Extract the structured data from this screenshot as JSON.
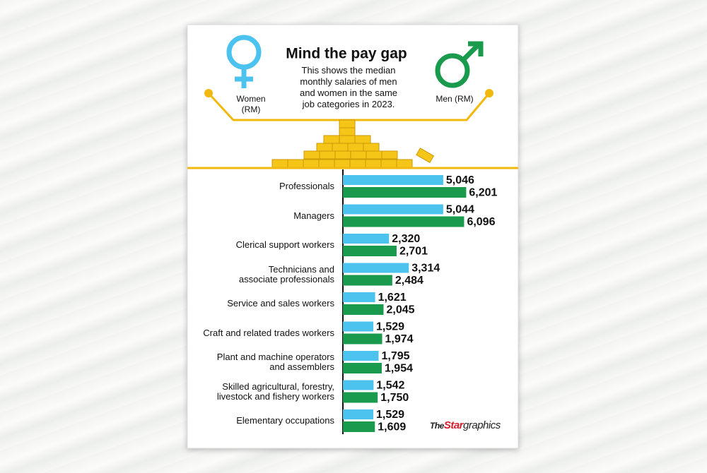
{
  "chart_data": {
    "type": "bar",
    "orientation": "horizontal",
    "title": "Mind the pay gap",
    "subtitle": "This shows the median monthly salaries of men and women in the same job categories in 2023.",
    "categories": [
      "Professionals",
      "Managers",
      "Clerical support workers",
      "Technicians and\nassociate professionals",
      "Service  and sales workers",
      "Craft and related trades workers",
      "Plant  and machine operators\nand assemblers",
      "Skilled agricultural, forestry,\nlivestock and fishery workers",
      "Elementary  occupations"
    ],
    "series": [
      {
        "name": "Women (RM)",
        "color": "#4cc3ee",
        "values": [
          5046,
          5044,
          2320,
          3314,
          1621,
          1529,
          1795,
          1542,
          1529
        ],
        "value_labels": [
          "5,046",
          "5,044",
          "2,320",
          "3,314",
          "1,621",
          "1,529",
          "1,795",
          "1,542",
          "1,529"
        ]
      },
      {
        "name": "Men (RM)",
        "color": "#1a9a4c",
        "values": [
          6201,
          6096,
          2701,
          2484,
          2045,
          1974,
          1954,
          1750,
          1609
        ],
        "value_labels": [
          "6,201",
          "6,096",
          "2,701",
          "2,484",
          "2,045",
          "1,974",
          "1,954",
          "1,750",
          "1,609"
        ]
      }
    ],
    "xlim": [
      0,
      8000
    ]
  },
  "source_logo": {
    "prefix": "The",
    "name": "Star",
    "suffix": "graphics"
  }
}
